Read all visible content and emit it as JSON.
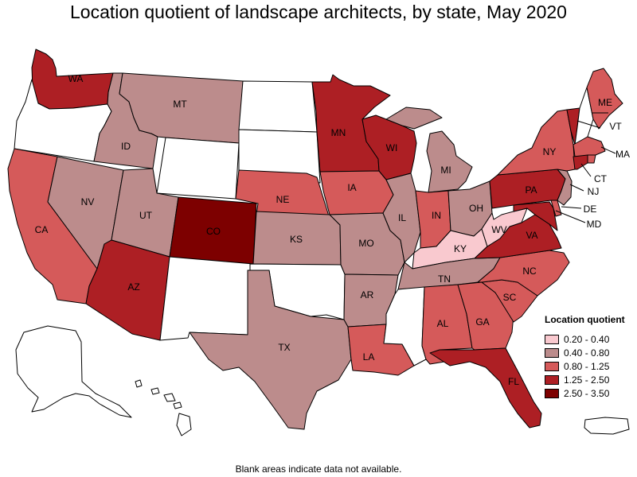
{
  "title": "Location quotient of landscape architects, by state, May 2020",
  "note": "Blank areas indicate data not available.",
  "legend": {
    "title": "Location quotient",
    "items": [
      {
        "label": "0.20 - 0.40",
        "color": "#f9c9cf"
      },
      {
        "label": "0.40 - 0.80",
        "color": "#bc8c8c"
      },
      {
        "label": "0.80 - 1.25",
        "color": "#d55a5a"
      },
      {
        "label": "1.25 - 2.50",
        "color": "#ad1f24"
      },
      {
        "label": "2.50 - 3.50",
        "color": "#7d0000"
      }
    ]
  },
  "colors": {
    "na": "#ffffff",
    "c1": "#f9c9cf",
    "c2": "#bc8c8c",
    "c3": "#d55a5a",
    "c4": "#ad1f24",
    "c5": "#7d0000"
  },
  "states": {
    "WA": {
      "label": "WA",
      "bin": "1.25 - 2.50"
    },
    "OR": {
      "label": "",
      "bin": "no data"
    },
    "CA": {
      "label": "CA",
      "bin": "0.80 - 1.25"
    },
    "ID": {
      "label": "ID",
      "bin": "0.40 - 0.80"
    },
    "NV": {
      "label": "NV",
      "bin": "0.40 - 0.80"
    },
    "MT": {
      "label": "MT",
      "bin": "0.40 - 0.80"
    },
    "WY": {
      "label": "",
      "bin": "no data"
    },
    "UT": {
      "label": "UT",
      "bin": "0.40 - 0.80"
    },
    "AZ": {
      "label": "AZ",
      "bin": "1.25 - 2.50"
    },
    "CO": {
      "label": "CO",
      "bin": "2.50 - 3.50"
    },
    "NM": {
      "label": "",
      "bin": "no data"
    },
    "ND": {
      "label": "",
      "bin": "no data"
    },
    "SD": {
      "label": "",
      "bin": "no data"
    },
    "NE": {
      "label": "NE",
      "bin": "0.80 - 1.25"
    },
    "KS": {
      "label": "KS",
      "bin": "0.40 - 0.80"
    },
    "OK": {
      "label": "",
      "bin": "no data"
    },
    "TX": {
      "label": "TX",
      "bin": "0.40 - 0.80"
    },
    "MN": {
      "label": "MN",
      "bin": "1.25 - 2.50"
    },
    "IA": {
      "label": "IA",
      "bin": "0.80 - 1.25"
    },
    "MO": {
      "label": "MO",
      "bin": "0.40 - 0.80"
    },
    "AR": {
      "label": "AR",
      "bin": "0.40 - 0.80"
    },
    "LA": {
      "label": "LA",
      "bin": "0.80 - 1.25"
    },
    "WI": {
      "label": "WI",
      "bin": "1.25 - 2.50"
    },
    "IL": {
      "label": "IL",
      "bin": "0.40 - 0.80"
    },
    "MI": {
      "label": "MI",
      "bin": "0.40 - 0.80"
    },
    "IN": {
      "label": "IN",
      "bin": "0.80 - 1.25"
    },
    "OH": {
      "label": "OH",
      "bin": "0.40 - 0.80"
    },
    "KY": {
      "label": "KY",
      "bin": "0.20 - 0.40"
    },
    "TN": {
      "label": "TN",
      "bin": "0.40 - 0.80"
    },
    "MS": {
      "label": "",
      "bin": "no data"
    },
    "AL": {
      "label": "AL",
      "bin": "0.80 - 1.25"
    },
    "GA": {
      "label": "GA",
      "bin": "0.80 - 1.25"
    },
    "FL": {
      "label": "FL",
      "bin": "1.25 - 2.50"
    },
    "SC": {
      "label": "SC",
      "bin": "0.80 - 1.25"
    },
    "NC": {
      "label": "NC",
      "bin": "0.80 - 1.25"
    },
    "VA": {
      "label": "VA",
      "bin": "1.25 - 2.50"
    },
    "WV": {
      "label": "WV",
      "bin": "0.20 - 0.40"
    },
    "PA": {
      "label": "PA",
      "bin": "1.25 - 2.50"
    },
    "NY": {
      "label": "NY",
      "bin": "0.80 - 1.25"
    },
    "VT": {
      "label": "VT",
      "bin": "1.25 - 2.50"
    },
    "NH": {
      "label": "NH",
      "bin": "no data"
    },
    "ME": {
      "label": "ME",
      "bin": "0.80 - 1.25"
    },
    "MA": {
      "label": "MA",
      "bin": "0.80 - 1.25"
    },
    "CT": {
      "label": "CT",
      "bin": "1.25 - 2.50"
    },
    "RI": {
      "label": "",
      "bin": "0.80 - 1.25"
    },
    "NJ": {
      "label": "NJ",
      "bin": "0.40 - 0.80"
    },
    "DE": {
      "label": "DE",
      "bin": "0.80 - 1.25"
    },
    "MD": {
      "label": "MD",
      "bin": "1.25 - 2.50"
    },
    "AK": {
      "label": "",
      "bin": "no data"
    },
    "HI": {
      "label": "",
      "bin": "no data"
    },
    "PR": {
      "label": "",
      "bin": "no data"
    }
  }
}
